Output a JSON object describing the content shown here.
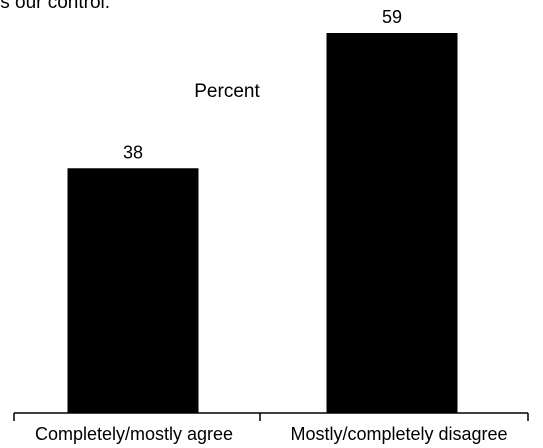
{
  "header": {
    "clipped_text": "is our control."
  },
  "colors": {
    "bar": "#000000",
    "axis": "#000000",
    "text": "#000000",
    "background": "#ffffff"
  },
  "chart_data": {
    "type": "bar",
    "title": "",
    "xlabel": "",
    "ylabel": "Percent",
    "categories": [
      "Completely/mostly agree",
      "Mostly/completely disagree"
    ],
    "values": [
      38,
      59
    ],
    "data_labels": [
      "38",
      "59"
    ],
    "ylim": [
      0,
      59
    ],
    "grid": false,
    "legend": "none"
  }
}
